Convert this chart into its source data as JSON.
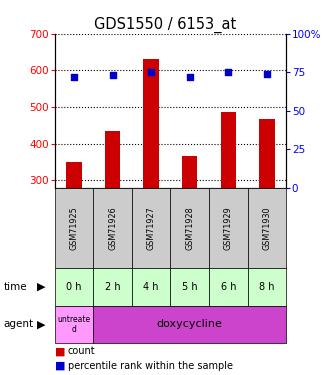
{
  "title": "GDS1550 / 6153_at",
  "samples": [
    "GSM71925",
    "GSM71926",
    "GSM71927",
    "GSM71928",
    "GSM71929",
    "GSM71930"
  ],
  "counts": [
    350,
    435,
    630,
    365,
    485,
    468
  ],
  "percentiles": [
    72,
    73,
    75,
    72,
    75,
    74
  ],
  "ylim_left": [
    280,
    700
  ],
  "ylim_right": [
    0,
    100
  ],
  "yticks_left": [
    300,
    400,
    500,
    600,
    700
  ],
  "yticks_right": [
    0,
    25,
    50,
    75,
    100
  ],
  "ytick_labels_right": [
    "0",
    "25",
    "50",
    "75",
    "100%"
  ],
  "bar_color": "#cc0000",
  "marker_color": "#0000cc",
  "times": [
    "0 h",
    "2 h",
    "4 h",
    "5 h",
    "6 h",
    "8 h"
  ],
  "time_color": "#ccffcc",
  "sample_bg_color": "#cccccc",
  "bar_width": 0.4,
  "legend_count_color": "#cc0000",
  "legend_pct_color": "#0000cc",
  "agent_first_color": "#ff99ff",
  "agent_rest_color": "#cc44cc"
}
